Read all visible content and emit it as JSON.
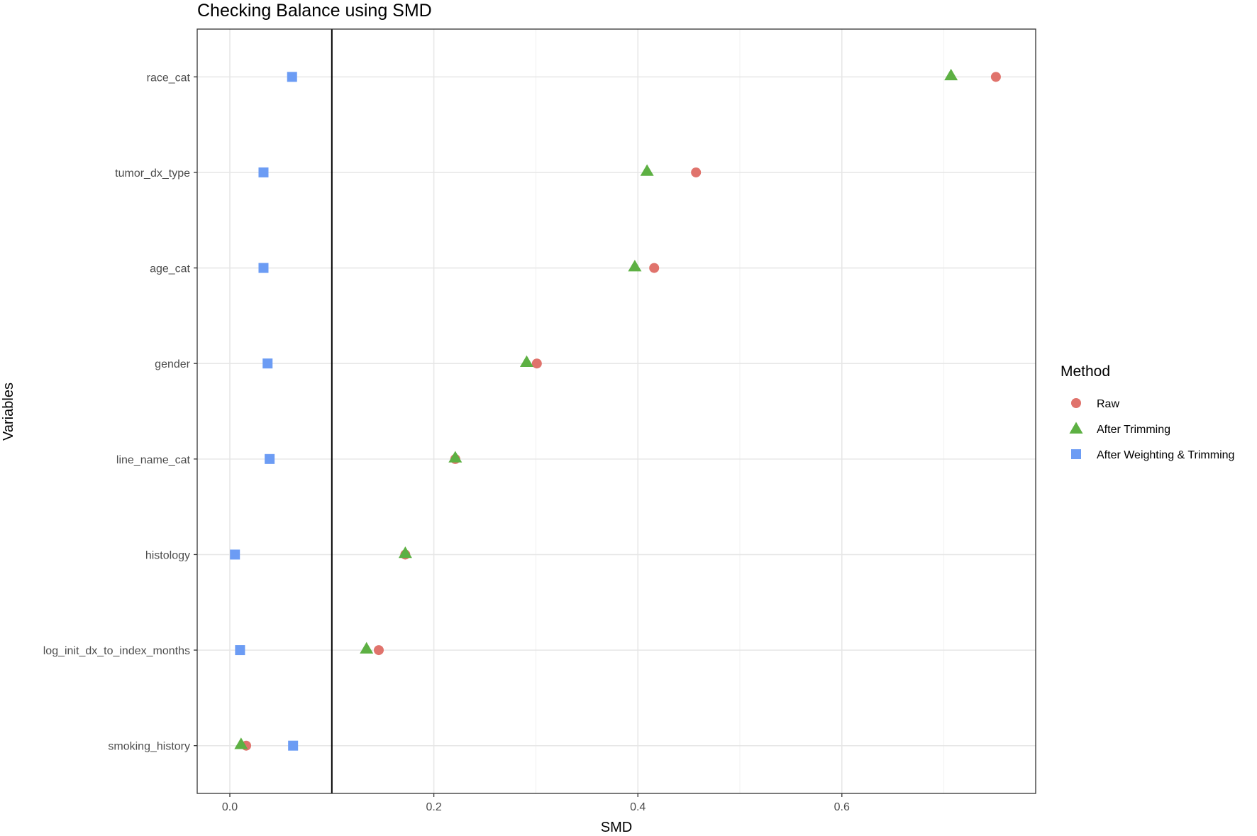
{
  "chart_data": {
    "type": "scatter",
    "title": "Checking Balance using SMD",
    "xlabel": "SMD",
    "ylabel": "Variables",
    "xlim": [
      -0.032,
      0.79
    ],
    "x_ticks": [
      0.0,
      0.2,
      0.4,
      0.6
    ],
    "x_tick_labels": [
      "0.0",
      "0.2",
      "0.4",
      "0.6"
    ],
    "categories": [
      "race_cat",
      "tumor_dx_type",
      "age_cat",
      "gender",
      "line_name_cat",
      "histology",
      "log_init_dx_to_index_months",
      "smoking_history"
    ],
    "reference_line": 0.1,
    "grid": true,
    "legend_position": "right",
    "legend_title": "Method",
    "series": [
      {
        "name": "Raw",
        "marker": "circle",
        "color": "#E0736C",
        "values": [
          0.751,
          0.457,
          0.416,
          0.301,
          0.221,
          0.172,
          0.146,
          0.016
        ]
      },
      {
        "name": "After Trimming",
        "marker": "triangle",
        "color": "#5DB043",
        "values": [
          0.707,
          0.409,
          0.397,
          0.291,
          0.221,
          0.172,
          0.134,
          0.011
        ]
      },
      {
        "name": "After Weighting & Trimming",
        "marker": "square",
        "color": "#6C9CF4",
        "values": [
          0.061,
          0.033,
          0.033,
          0.037,
          0.039,
          0.005,
          0.01,
          0.062
        ]
      }
    ]
  }
}
